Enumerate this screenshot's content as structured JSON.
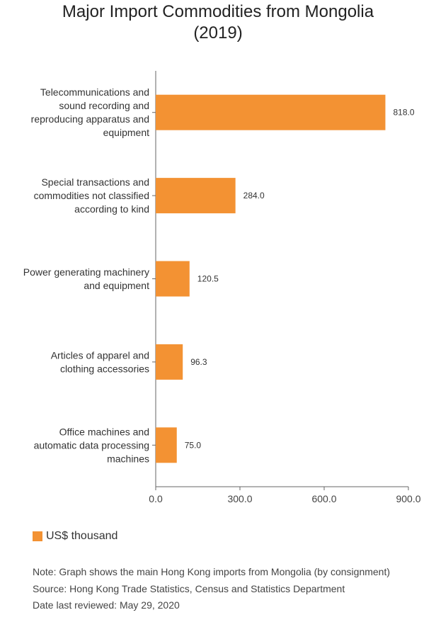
{
  "chart_data": {
    "type": "bar",
    "orientation": "horizontal",
    "title": "Major Import Commodities from Mongolia (2019)",
    "title_lines": [
      "Major Import Commodities from Mongolia",
      "(2019)"
    ],
    "categories": [
      [
        "Telecommunications and",
        "sound recording and",
        "reproducing apparatus and",
        "equipment"
      ],
      [
        "Special transactions and",
        "commodities not classified",
        "according to kind"
      ],
      [
        "Power generating machinery",
        "and equipment"
      ],
      [
        "Articles of apparel and",
        "clothing accessories"
      ],
      [
        "Office machines and",
        "automatic data processing",
        "machines"
      ]
    ],
    "series": [
      {
        "name": "US$ thousand",
        "values": [
          818.0,
          284.0,
          120.5,
          96.3,
          75.0
        ],
        "color": "#f39233"
      }
    ],
    "value_labels": [
      "818.0",
      "284.0",
      "120.5",
      "96.3",
      "75.0"
    ],
    "xlim": [
      0,
      900
    ],
    "xticks": [
      0,
      300,
      600,
      900
    ],
    "xtick_labels": [
      "0.0",
      "300.0",
      "600.0",
      "900.0"
    ],
    "legend": "bottom-left",
    "grid": false
  },
  "legend": {
    "label": "US$ thousand",
    "color": "#f39233"
  },
  "notes": {
    "note": "Note: Graph shows the main Hong Kong imports from Mongolia (by consignment)",
    "source": "Source: Hong Kong Trade Statistics, Census and Statistics Department",
    "reviewed": "Date last reviewed: May 29, 2020"
  }
}
